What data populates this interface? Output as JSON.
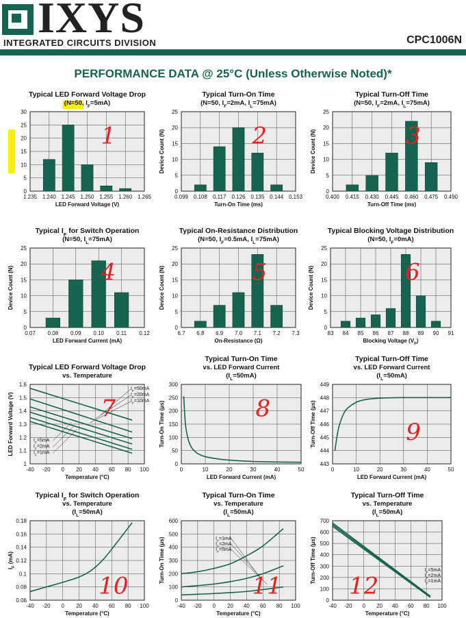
{
  "header": {
    "brand": "IXYS",
    "division": "INTEGRATED CIRCUITS DIVISION",
    "part_number": "CPC1006N",
    "section_title": "PERFORMANCE DATA @ 25°C (Unless Otherwise Noted)*",
    "brand_color": "#16634f"
  },
  "chart_data": [
    {
      "id": "c1",
      "type": "bar",
      "title": "Typical LED Forward Voltage Drop",
      "subtitle": "(N=50, I_F=5mA)",
      "xlabel": "LED Forward Voltage (V)",
      "ylabel": "Device Count (N)",
      "x_ticks": [
        "1.235",
        "1.240",
        "1.245",
        "1.250",
        "1.255",
        "1.260",
        "1.265"
      ],
      "y_ticks": [
        0,
        5,
        10,
        15,
        20,
        25,
        30
      ],
      "ylim": [
        0,
        30
      ],
      "categories": [
        "1.240",
        "1.245",
        "1.250",
        "1.255",
        "1.260"
      ],
      "values": [
        12,
        25,
        10,
        2,
        1
      ],
      "annotation": "1",
      "highlight": true
    },
    {
      "id": "c2",
      "type": "bar",
      "title": "Typical Turn-On Time",
      "subtitle": "(N=50, I_F=2mA, I_L=75mA)",
      "xlabel": "Turn-On Time (ms)",
      "ylabel": "Device Count (N)",
      "x_ticks": [
        "0.099",
        "0.108",
        "0.117",
        "0.126",
        "0.135",
        "0.144",
        "0.153"
      ],
      "y_ticks": [
        0,
        5,
        10,
        15,
        20,
        25
      ],
      "ylim": [
        0,
        25
      ],
      "categories": [
        "0.108",
        "0.117",
        "0.126",
        "0.135",
        "0.144"
      ],
      "values": [
        2,
        14,
        20,
        12,
        2
      ],
      "annotation": "2"
    },
    {
      "id": "c3",
      "type": "bar",
      "title": "Typical Turn-Off Time",
      "subtitle": "(N=50, I_F=2mA, I_L=75mA)",
      "xlabel": "Turn-Off Time (ms)",
      "ylabel": "Device Count (N)",
      "x_ticks": [
        "0.400",
        "0.415",
        "0.430",
        "0.445",
        "0.460",
        "0.475",
        "0.490"
      ],
      "y_ticks": [
        0,
        5,
        10,
        15,
        20,
        25
      ],
      "ylim": [
        0,
        25
      ],
      "categories": [
        "0.415",
        "0.430",
        "0.445",
        "0.460",
        "0.475"
      ],
      "values": [
        2,
        5,
        12,
        22,
        9
      ],
      "annotation": "3"
    },
    {
      "id": "c4",
      "type": "bar",
      "title": "Typical I_F for Switch Operation",
      "subtitle": "(N=50, I_L=75mA)",
      "xlabel": "LED Forward Current (mA)",
      "ylabel": "Device Count (N)",
      "x_ticks": [
        "0.07",
        "0.08",
        "0.09",
        "0.10",
        "0.11",
        "0.12"
      ],
      "y_ticks": [
        0,
        5,
        10,
        15,
        20,
        25
      ],
      "ylim": [
        0,
        25
      ],
      "categories": [
        "0.08",
        "0.09",
        "0.10",
        "0.11"
      ],
      "values": [
        3,
        15,
        21,
        11
      ],
      "annotation": "4"
    },
    {
      "id": "c5",
      "type": "bar",
      "title": "Typical On-Resistance Distribution",
      "subtitle": "(N=50, I_F=0.5mA, I_L=75mA)",
      "xlabel": "On-Resistance (Ω)",
      "ylabel": "Device Count (N)",
      "x_ticks": [
        "6.7",
        "6.8",
        "6.9",
        "7.0",
        "7.1",
        "7.2",
        "7.3"
      ],
      "y_ticks": [
        0,
        5,
        10,
        15,
        20,
        25
      ],
      "ylim": [
        0,
        25
      ],
      "categories": [
        "6.8",
        "6.9",
        "7.0",
        "7.1",
        "7.2"
      ],
      "values": [
        2,
        7,
        11,
        23,
        7
      ],
      "annotation": "5"
    },
    {
      "id": "c6",
      "type": "bar",
      "title": "Typical Blocking Voltage Distribution",
      "subtitle": "(N=50, I_F=0mA)",
      "xlabel": "Blocking Voltage (V_P)",
      "ylabel": "Device Count (N)",
      "x_ticks": [
        "83",
        "84",
        "85",
        "86",
        "87",
        "88",
        "89",
        "90",
        "91"
      ],
      "y_ticks": [
        0,
        5,
        10,
        15,
        20,
        25
      ],
      "ylim": [
        0,
        25
      ],
      "categories": [
        "84",
        "85",
        "86",
        "87",
        "88",
        "89",
        "90"
      ],
      "values": [
        2,
        3,
        4,
        6,
        23,
        10,
        2
      ],
      "annotation": "6"
    },
    {
      "id": "c7",
      "type": "line",
      "title": "Typical LED Forward Voltage Drop",
      "subtitle": "vs. Temperature",
      "xlabel": "Temperature (°C)",
      "ylabel": "LED Forward Voltage (V)",
      "x_ticks": [
        -40,
        -20,
        0,
        20,
        40,
        60,
        80,
        100
      ],
      "y_ticks": [
        1.0,
        1.1,
        1.2,
        1.3,
        1.4,
        1.5,
        1.6
      ],
      "xlim": [
        -40,
        100
      ],
      "ylim": [
        1.0,
        1.6
      ],
      "series": [
        {
          "name": "I_F=50mA",
          "x": [
            -40,
            85
          ],
          "y": [
            1.57,
            1.33
          ]
        },
        {
          "name": "I_F=20mA",
          "x": [
            -40,
            85
          ],
          "y": [
            1.49,
            1.24
          ]
        },
        {
          "name": "I_F=10mA",
          "x": [
            -40,
            85
          ],
          "y": [
            1.43,
            1.19
          ]
        },
        {
          "name": "I_F=5mA",
          "x": [
            -40,
            85
          ],
          "y": [
            1.39,
            1.15
          ]
        },
        {
          "name": "I_F=2mA",
          "x": [
            -40,
            85
          ],
          "y": [
            1.35,
            1.11
          ]
        },
        {
          "name": "I_F=1mA",
          "x": [
            -40,
            85
          ],
          "y": [
            1.32,
            1.08
          ]
        }
      ],
      "labels_upper": [
        "I_F=50mA",
        "I_F=20mA",
        "I_F=10mA"
      ],
      "labels_lower": [
        "I_F=5mA",
        "I_F=2mA",
        "I_F=1mA"
      ],
      "annotation": "7"
    },
    {
      "id": "c8",
      "type": "line",
      "title": "Typical Turn-On Time",
      "subtitle": "vs. LED Forward Current",
      "subtitle2": "(I_L=50mA)",
      "xlabel": "LED Forward Current (mA)",
      "ylabel": "Turn-On Time (μs)",
      "x_ticks": [
        0,
        10,
        20,
        30,
        40,
        50
      ],
      "y_ticks": [
        0,
        50,
        100,
        150,
        200,
        250,
        300
      ],
      "xlim": [
        0,
        50
      ],
      "ylim": [
        0,
        300
      ],
      "series": [
        {
          "x": [
            1,
            1.5,
            2,
            3,
            4,
            5,
            7,
            10,
            15,
            20,
            30,
            40,
            50
          ],
          "y": [
            255,
            175,
            130,
            88,
            66,
            53,
            38,
            27,
            19,
            14,
            9,
            7,
            6
          ]
        }
      ],
      "annotation": "8"
    },
    {
      "id": "c9",
      "type": "line",
      "title": "Typical Turn-Off Time",
      "subtitle": "vs. LED Forward Current",
      "subtitle2": "(I_L=50mA)",
      "xlabel": "LED Forward Current (mA)",
      "ylabel": "Turn-Off Time (μs)",
      "x_ticks": [
        0,
        10,
        20,
        30,
        40,
        50
      ],
      "y_ticks": [
        443,
        444,
        445,
        446,
        447,
        448,
        449
      ],
      "xlim": [
        0,
        50
      ],
      "ylim": [
        443,
        449
      ],
      "series": [
        {
          "x": [
            1,
            2,
            3,
            5,
            7,
            10,
            13,
            16,
            20,
            25,
            30,
            40,
            50
          ],
          "y": [
            444.0,
            445.2,
            446.0,
            446.9,
            447.3,
            447.65,
            447.82,
            447.9,
            447.96,
            447.99,
            448.0,
            448.0,
            448.0
          ]
        }
      ],
      "annotation": "9"
    },
    {
      "id": "c10",
      "type": "line",
      "title": "Typical I_F for Switch Operation",
      "subtitle": "vs. Temperature",
      "subtitle2": "(I_L=50mA)",
      "xlabel": "Temperature (°C)",
      "ylabel": "I_F (mA)",
      "x_ticks": [
        -40,
        -20,
        0,
        20,
        40,
        60,
        80,
        100
      ],
      "y_ticks": [
        0.06,
        0.08,
        0.1,
        0.12,
        0.14,
        0.16,
        0.18
      ],
      "xlim": [
        -40,
        100
      ],
      "ylim": [
        0.06,
        0.18
      ],
      "series": [
        {
          "x": [
            -40,
            -20,
            0,
            20,
            35,
            50,
            65,
            85
          ],
          "y": [
            0.073,
            0.08,
            0.087,
            0.095,
            0.105,
            0.122,
            0.145,
            0.177
          ]
        }
      ],
      "annotation": "10"
    },
    {
      "id": "c11",
      "type": "line",
      "title": "Typical Turn-On Time",
      "subtitle": "vs. Temperature",
      "subtitle2": "(I_L=50mA)",
      "xlabel": "Temperature (°C)",
      "ylabel": "Turn-On Time (μs)",
      "x_ticks": [
        -40,
        -20,
        0,
        20,
        40,
        60,
        80,
        100
      ],
      "y_ticks": [
        0,
        100,
        200,
        300,
        400,
        500,
        600
      ],
      "xlim": [
        -40,
        100
      ],
      "ylim": [
        0,
        600
      ],
      "series": [
        {
          "name": "I_F=1mA",
          "x": [
            -40,
            -20,
            0,
            20,
            40,
            60,
            85
          ],
          "y": [
            200,
            215,
            240,
            275,
            335,
            410,
            540
          ]
        },
        {
          "name": "I_F=2mA",
          "x": [
            -40,
            -20,
            0,
            20,
            40,
            60,
            85
          ],
          "y": [
            100,
            110,
            122,
            140,
            165,
            200,
            260
          ]
        },
        {
          "name": "I_F=5mA",
          "x": [
            -40,
            -20,
            0,
            20,
            40,
            60,
            85
          ],
          "y": [
            40,
            45,
            50,
            57,
            66,
            80,
            100
          ]
        }
      ],
      "annotation": "11"
    },
    {
      "id": "c12",
      "type": "line",
      "title": "Typical Turn-Off Time",
      "subtitle": "vs. Temperature",
      "subtitle2": "(I_L=50mA)",
      "xlabel": "Temperature (°C)",
      "ylabel": "Turn-Off Time (μs)",
      "x_ticks": [
        -40,
        -20,
        0,
        20,
        40,
        60,
        80,
        100
      ],
      "y_ticks": [
        0,
        100,
        200,
        300,
        400,
        500,
        600,
        700
      ],
      "xlim": [
        -40,
        100
      ],
      "ylim": [
        0,
        700
      ],
      "series": [
        {
          "name": "I_F=5mA",
          "x": [
            -40,
            85
          ],
          "y": [
            680,
            35
          ]
        },
        {
          "name": "I_F=2mA",
          "x": [
            -40,
            85
          ],
          "y": [
            665,
            30
          ]
        },
        {
          "name": "I_F=1mA",
          "x": [
            -40,
            85
          ],
          "y": [
            650,
            25
          ]
        }
      ],
      "annotation": "12"
    }
  ]
}
